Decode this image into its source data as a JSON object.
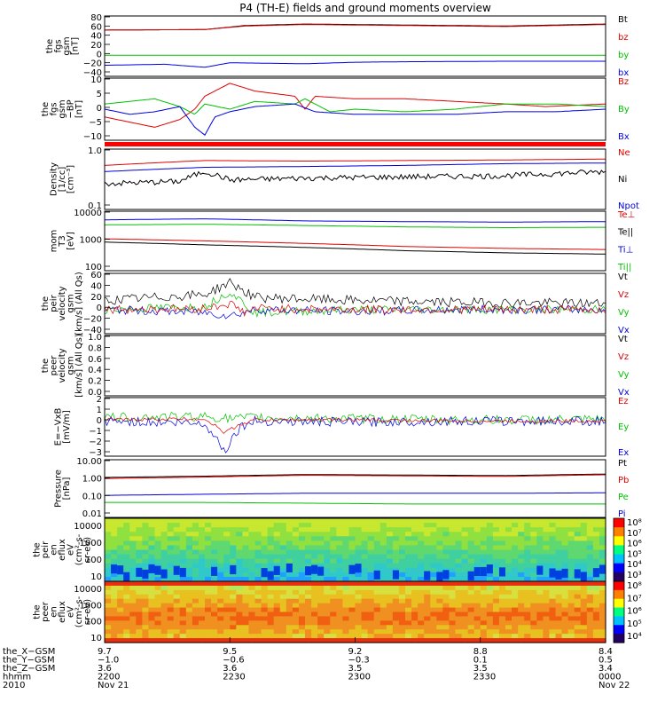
{
  "title": "P4 (TH-E) fields and ground moments overview",
  "chart_data": [
    {
      "type": "line",
      "ylabel": [
        "the",
        "fgs",
        "gsm",
        "[nT]"
      ],
      "yticks": [
        "80",
        "60",
        "40",
        "20",
        "0",
        "−20",
        "−40"
      ],
      "ylim": [
        -40,
        80
      ],
      "legend": [
        {
          "name": "Bt",
          "color": "#000000"
        },
        {
          "name": "bz",
          "color": "#e00000"
        },
        {
          "name": "by",
          "color": "#00c000"
        },
        {
          "name": "bx",
          "color": "#0000e0"
        }
      ],
      "series": [
        {
          "name": "Bt",
          "color": "#000000",
          "x": [
            0,
            0.2,
            0.28,
            0.4,
            0.6,
            0.8,
            1
          ],
          "y": [
            52,
            53,
            61,
            64,
            62,
            60,
            64
          ]
        },
        {
          "name": "bz",
          "color": "#e00000",
          "x": [
            0,
            0.2,
            0.28,
            0.4,
            0.6,
            0.8,
            1
          ],
          "y": [
            52,
            53,
            60,
            63,
            61,
            59,
            63
          ]
        },
        {
          "name": "by",
          "color": "#00c000",
          "x": [
            0,
            0.5,
            1
          ],
          "y": [
            2,
            2,
            2
          ]
        },
        {
          "name": "bx",
          "color": "#0000e0",
          "x": [
            0,
            0.12,
            0.2,
            0.25,
            0.4,
            0.5,
            0.6,
            0.8,
            1
          ],
          "y": [
            -18,
            -16,
            -22,
            -13,
            -15,
            -12,
            -11,
            -10,
            -10
          ]
        }
      ]
    },
    {
      "type": "line",
      "ylabel": [
        "the",
        "fgs",
        "gsm",
        "−BP",
        "[nT]"
      ],
      "yticks": [
        "10",
        "5",
        "0",
        "−5",
        "−10"
      ],
      "ylim": [
        -14,
        10
      ],
      "legend": [
        {
          "name": "Bz",
          "color": "#e00000"
        },
        {
          "name": "By",
          "color": "#00c000"
        },
        {
          "name": "Bx",
          "color": "#0000e0"
        }
      ],
      "series": [
        {
          "name": "Bz",
          "color": "#e00000",
          "x": [
            0,
            0.05,
            0.1,
            0.15,
            0.18,
            0.2,
            0.23,
            0.25,
            0.3,
            0.38,
            0.4,
            0.42,
            0.5,
            0.6,
            0.7,
            0.8,
            0.88,
            1
          ],
          "y": [
            -5,
            -7,
            -9,
            -6,
            -2,
            3,
            6,
            8,
            5,
            3,
            -2,
            3,
            2,
            2,
            1,
            0,
            -1,
            0
          ]
        },
        {
          "name": "By",
          "color": "#00c000",
          "x": [
            0,
            0.05,
            0.1,
            0.15,
            0.18,
            0.2,
            0.25,
            0.3,
            0.38,
            0.4,
            0.45,
            0.5,
            0.6,
            0.7,
            0.8,
            0.9,
            1
          ],
          "y": [
            0,
            1,
            2,
            -1,
            -4,
            0,
            -2,
            1,
            0,
            2,
            -3,
            -2,
            -3,
            -2,
            0,
            0,
            -1
          ]
        },
        {
          "name": "Bx",
          "color": "#0000e0",
          "x": [
            0,
            0.05,
            0.1,
            0.15,
            0.18,
            0.2,
            0.22,
            0.25,
            0.3,
            0.38,
            0.42,
            0.5,
            0.6,
            0.7,
            0.8,
            0.9,
            1
          ],
          "y": [
            -2,
            -4,
            -3,
            -1,
            -9,
            -12,
            -5,
            -3,
            -1,
            0,
            -3,
            -4,
            -4,
            -4,
            -3,
            -3,
            -2
          ]
        }
      ]
    },
    {
      "type": "line",
      "log": true,
      "ylabel": [
        "Density",
        "[1/cc]",
        "[cm⁻³]"
      ],
      "yticks": [
        "1.0",
        "0.1"
      ],
      "ylim": [
        0.1,
        1.3
      ],
      "legend": [
        {
          "name": "Ne",
          "color": "#e00000"
        },
        {
          "name": "Ni",
          "color": "#000000"
        },
        {
          "name": "Npot",
          "color": "#0000e0"
        }
      ],
      "series": [
        {
          "name": "Ne",
          "color": "#e00000",
          "x": [
            0,
            0.2,
            0.4,
            0.6,
            0.8,
            1
          ],
          "y": [
            0.65,
            0.8,
            0.78,
            0.8,
            0.82,
            0.85
          ]
        },
        {
          "name": "Npot",
          "color": "#0000e0",
          "x": [
            0,
            0.2,
            0.4,
            0.6,
            0.8,
            1
          ],
          "y": [
            0.5,
            0.6,
            0.62,
            0.65,
            0.7,
            0.72
          ]
        },
        {
          "name": "Ni",
          "color": "#000000",
          "x": [
            0,
            0.15,
            0.2,
            0.25,
            0.4,
            0.6,
            0.8,
            1
          ],
          "y": [
            0.3,
            0.33,
            0.5,
            0.35,
            0.38,
            0.4,
            0.42,
            0.5
          ]
        }
      ]
    },
    {
      "type": "line",
      "log": true,
      "ylabel": [
        "mom",
        "T3",
        "[eV]"
      ],
      "yticks": [
        "10000",
        "1000",
        "100"
      ],
      "ylim": [
        100,
        12000
      ],
      "legend": [
        {
          "name": "Te⊥",
          "color": "#e00000"
        },
        {
          "name": "Te||",
          "color": "#000000"
        },
        {
          "name": "Ti⊥",
          "color": "#0000e0"
        },
        {
          "name": "Ti||",
          "color": "#00c000"
        }
      ],
      "series": [
        {
          "name": "Ti⊥",
          "color": "#0000e0",
          "x": [
            0,
            0.2,
            0.4,
            0.6,
            0.8,
            1
          ],
          "y": [
            6000,
            6500,
            5500,
            5200,
            5000,
            5200
          ]
        },
        {
          "name": "Ti||",
          "color": "#00c000",
          "x": [
            0,
            0.2,
            0.4,
            0.6,
            0.8,
            1
          ],
          "y": [
            4000,
            4200,
            3800,
            3400,
            3200,
            3300
          ]
        },
        {
          "name": "Te⊥",
          "color": "#e00000",
          "x": [
            0,
            0.2,
            0.4,
            0.6,
            0.8,
            1
          ],
          "y": [
            1300,
            1100,
            900,
            700,
            600,
            550
          ]
        },
        {
          "name": "Te||",
          "color": "#000000",
          "x": [
            0,
            0.2,
            0.4,
            0.6,
            0.8,
            1
          ],
          "y": [
            1000,
            800,
            650,
            500,
            420,
            380
          ]
        }
      ]
    },
    {
      "type": "line",
      "ylabel": [
        "the",
        "peir",
        "velocity",
        "gsm",
        "[km/s] (All Qs)"
      ],
      "yticks": [
        "60",
        "40",
        "20",
        "0",
        "−20",
        "−40"
      ],
      "ylim": [
        -40,
        60
      ],
      "legend": [
        {
          "name": "Vt",
          "color": "#000000"
        },
        {
          "name": "Vz",
          "color": "#e00000"
        },
        {
          "name": "Vy",
          "color": "#00c000"
        },
        {
          "name": "Vx",
          "color": "#0000e0"
        }
      ],
      "series": [
        {
          "name": "Vt",
          "color": "#000000",
          "x": [
            0,
            0.2,
            0.25,
            0.3,
            0.5,
            0.7,
            1
          ],
          "y": [
            15,
            25,
            45,
            20,
            15,
            12,
            10
          ]
        },
        {
          "name": "Vy",
          "color": "#00c000",
          "x": [
            0,
            0.2,
            0.25,
            0.3,
            0.5,
            0.7,
            1
          ],
          "y": [
            0,
            5,
            30,
            -5,
            0,
            0,
            0
          ]
        },
        {
          "name": "Vx",
          "color": "#0000e0",
          "x": [
            0,
            0.2,
            0.25,
            0.3,
            0.5,
            0.7,
            1
          ],
          "y": [
            0,
            -5,
            -10,
            0,
            -3,
            0,
            0
          ]
        },
        {
          "name": "Vz",
          "color": "#e00000",
          "x": [
            0,
            0.2,
            0.25,
            0.28,
            0.3,
            0.5,
            0.7,
            1
          ],
          "y": [
            0,
            2,
            10,
            -5,
            2,
            0,
            0,
            0
          ]
        }
      ]
    },
    {
      "type": "line",
      "ylabel": [
        "the",
        "peer",
        "velocity",
        "gsm",
        "[km/s] (All Qs)"
      ],
      "yticks": [
        "1.0",
        "0.8",
        "0.6",
        "0.4",
        "0.2",
        "0.0"
      ],
      "ylim": [
        0,
        1
      ],
      "legend": [
        {
          "name": "Vt",
          "color": "#000000"
        },
        {
          "name": "Vz",
          "color": "#e00000"
        },
        {
          "name": "Vy",
          "color": "#00c000"
        },
        {
          "name": "Vx",
          "color": "#0000e0"
        }
      ],
      "series": []
    },
    {
      "type": "line",
      "ylabel": [
        "E=−VxB",
        "[mV/m]"
      ],
      "yticks": [
        "2",
        "1",
        "0",
        "−1",
        "−2",
        "−3"
      ],
      "ylim": [
        -3,
        2
      ],
      "legend": [
        {
          "name": "Ez",
          "color": "#e00000"
        },
        {
          "name": "Ey",
          "color": "#00c000"
        },
        {
          "name": "Ex",
          "color": "#0000e0"
        }
      ],
      "series": [
        {
          "name": "Ey",
          "color": "#00c000",
          "x": [
            0,
            0.2,
            0.25,
            0.3,
            0.5,
            0.7,
            1
          ],
          "y": [
            0.3,
            0.4,
            0.2,
            0.3,
            0.2,
            0.1,
            0.1
          ]
        },
        {
          "name": "Ex",
          "color": "#0000e0",
          "x": [
            0,
            0.2,
            0.24,
            0.27,
            0.3,
            0.5,
            0.7,
            1
          ],
          "y": [
            0,
            -0.2,
            -2.5,
            -0.5,
            0,
            -0.1,
            0,
            0
          ]
        },
        {
          "name": "Ez",
          "color": "#e00000",
          "x": [
            0,
            0.2,
            0.24,
            0.27,
            0.3,
            0.5,
            0.7,
            1
          ],
          "y": [
            0.1,
            0.2,
            -1,
            -0.3,
            0.1,
            0.1,
            0,
            0
          ]
        }
      ]
    },
    {
      "type": "line",
      "log": true,
      "ylabel": [
        "Pressure",
        "[nPa]"
      ],
      "yticks": [
        "10.00",
        "1.00",
        "0.10",
        "0.01"
      ],
      "ylim": [
        0.01,
        10
      ],
      "legend": [
        {
          "name": "Pt",
          "color": "#000000"
        },
        {
          "name": "Pb",
          "color": "#e00000"
        },
        {
          "name": "Pe",
          "color": "#00c000"
        },
        {
          "name": "Pi",
          "color": "#0000e0"
        }
      ],
      "series": [
        {
          "name": "Pt",
          "color": "#000000",
          "x": [
            0,
            0.2,
            0.4,
            0.6,
            0.8,
            1
          ],
          "y": [
            1.2,
            1.4,
            1.7,
            1.6,
            1.5,
            1.8
          ]
        },
        {
          "name": "Pb",
          "color": "#e00000",
          "x": [
            0,
            0.2,
            0.4,
            0.6,
            0.8,
            1
          ],
          "y": [
            1.05,
            1.25,
            1.55,
            1.45,
            1.35,
            1.65
          ]
        },
        {
          "name": "Pi",
          "color": "#0000e0",
          "x": [
            0,
            0.2,
            0.4,
            0.6,
            0.8,
            1
          ],
          "y": [
            0.14,
            0.16,
            0.18,
            0.18,
            0.18,
            0.19
          ]
        },
        {
          "name": "Pe",
          "color": "#00c000",
          "x": [
            0,
            0.2,
            0.4,
            0.6,
            0.8,
            1
          ],
          "y": [
            0.06,
            0.06,
            0.055,
            0.05,
            0.05,
            0.05
          ]
        }
      ]
    },
    {
      "type": "heatmap",
      "ylabel": [
        "the",
        "peir",
        "en",
        "eflux",
        "eV",
        "(cm²-s-",
        "sr-eV)"
      ],
      "yticks": [
        "10000",
        "1000",
        "100",
        "10"
      ],
      "colorbar_ticks": [
        "10⁸",
        "10⁷",
        "10⁶",
        "10⁵",
        "10⁴",
        "10³"
      ]
    },
    {
      "type": "heatmap",
      "ylabel": [
        "the",
        "peer",
        "en",
        "eflux",
        "eV",
        "(cm²-s-",
        "sr-eV)"
      ],
      "yticks": [
        "10000",
        "1000",
        "100",
        "10"
      ],
      "colorbar_ticks": [
        "10⁸",
        "10⁷",
        "10⁶",
        "10⁵",
        "10⁴"
      ]
    }
  ],
  "xaxis": {
    "row_labels": [
      "the_X−GSM",
      "the_Y−GSM",
      "the_Z−GSM",
      "hhmm",
      "2010"
    ],
    "columns": [
      {
        "values": [
          "9.7",
          "−1.0",
          "3.6",
          "2200",
          "Nov 21"
        ]
      },
      {
        "values": [
          "9.5",
          "−0.6",
          "3.6",
          "2230",
          ""
        ]
      },
      {
        "values": [
          "9.2",
          "−0.3",
          "3.5",
          "2300",
          ""
        ]
      },
      {
        "values": [
          "8.8",
          "0.1",
          "3.5",
          "2330",
          ""
        ]
      },
      {
        "values": [
          "8.4",
          "0.5",
          "3.4",
          "0000",
          "Nov 22"
        ]
      }
    ]
  }
}
